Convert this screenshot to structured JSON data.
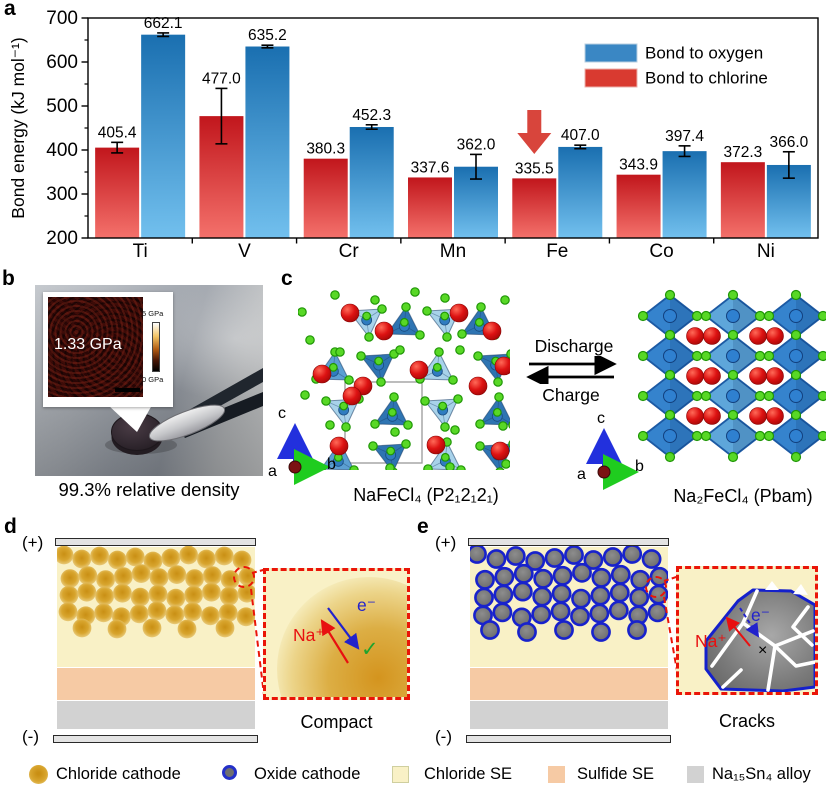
{
  "panels": {
    "a": {
      "label": "a"
    },
    "b": {
      "label": "b",
      "hardness": "1.33 GPa",
      "scale_max": "5 GPa",
      "scale_min": "0 GPa",
      "caption": "99.3% relative density"
    },
    "c": {
      "label": "c",
      "discharge": "Discharge",
      "charge": "Charge",
      "axis_a": "a",
      "axis_b": "b",
      "axis_c": "c",
      "left_caption": "NaFeCl₄ (P2₁2₁2₁)",
      "right_caption": "Na₂FeCl₄ (Pbam)"
    },
    "d": {
      "label": "d",
      "positive": "(+)",
      "negative": "(-)",
      "na_label": "Na⁺",
      "e_label": "e⁻",
      "check": "✓",
      "caption": "Compact"
    },
    "e": {
      "label": "e",
      "positive": "(+)",
      "negative": "(-)",
      "na_label": "Na⁺",
      "e_label": "e⁻",
      "cross": "×",
      "caption": "Cracks"
    }
  },
  "chart_data": {
    "type": "bar",
    "title": "",
    "xlabel": "",
    "ylabel": "Bond energy (kJ mol⁻¹)",
    "ylim": [
      200,
      700
    ],
    "yticks": [
      200,
      300,
      400,
      500,
      600,
      700
    ],
    "categories": [
      "Ti",
      "V",
      "Cr",
      "Mn",
      "Fe",
      "Co",
      "Ni"
    ],
    "series": [
      {
        "name": "Bond to oxygen",
        "legend_color": "#3a87c4",
        "color_top": "#1a6fb0",
        "color_bottom": "#72c0ee",
        "values": [
          662.1,
          635.2,
          452.3,
          362.0,
          407.0,
          397.4,
          366.0
        ],
        "errors": [
          4,
          3,
          5,
          28,
          4,
          12,
          30
        ]
      },
      {
        "name": "Bond to chlorine",
        "legend_color": "#d93a30",
        "color_top": "#c1161c",
        "color_bottom": "#f4716b",
        "values": [
          405.4,
          477.0,
          380.3,
          337.6,
          335.5,
          343.9,
          372.3
        ],
        "errors": [
          12,
          63,
          0,
          0,
          0,
          0,
          0
        ]
      }
    ],
    "annotation": {
      "type": "arrow-down",
      "target_category": "Fe",
      "target_series": "Bond to chlorine",
      "color": "#d8453c"
    },
    "legend_position": "top-right",
    "left_series": "Bond to chlorine"
  },
  "bottom_legend": {
    "items": [
      {
        "label": "Chloride cathode",
        "swatch": "gold-circle"
      },
      {
        "label": "Oxide cathode",
        "swatch": "gray-circle-blue-ring"
      },
      {
        "label": "Chloride SE",
        "swatch": "pale-yellow-square",
        "color": "#f9f1c6"
      },
      {
        "label": "Sulfide SE",
        "swatch": "peach-square",
        "color": "#f6caa4"
      },
      {
        "label": "Na₁₅Sn₄ alloy",
        "swatch": "gray-square",
        "color": "#d2d2d2"
      }
    ]
  }
}
